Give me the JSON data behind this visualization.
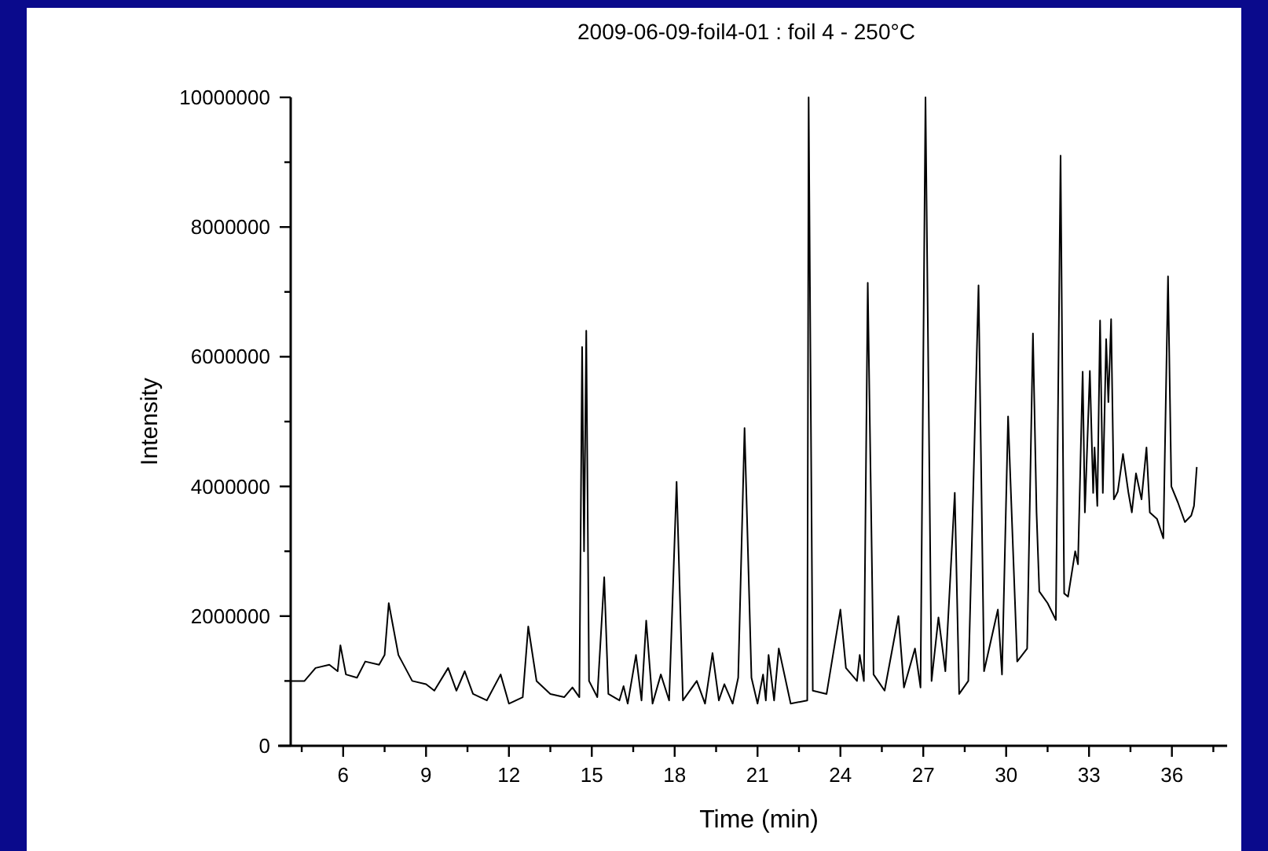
{
  "chart_data": {
    "type": "line",
    "title": "2009-06-09-foil4-01 : foil 4 - 250°C",
    "xlabel": "Time (min)",
    "ylabel": "Intensity",
    "xlim": [
      4.1,
      38
    ],
    "ylim": [
      0,
      10000000
    ],
    "xticks": [
      {
        "value": 4.5,
        "label": null
      },
      6,
      {
        "value": 7.5,
        "label": null
      },
      9,
      {
        "value": 10.5,
        "label": null
      },
      12,
      {
        "value": 13.5,
        "label": null
      },
      15,
      {
        "value": 16.5,
        "label": null
      },
      18,
      {
        "value": 19.5,
        "label": null
      },
      21,
      {
        "value": 22.5,
        "label": null
      },
      24,
      {
        "value": 25.5,
        "label": null
      },
      27,
      {
        "value": 28.5,
        "label": null
      },
      30,
      {
        "value": 31.5,
        "label": null
      },
      33,
      {
        "value": 34.5,
        "label": null
      },
      36,
      {
        "value": 37.5,
        "label": null
      }
    ],
    "yticks": [
      0,
      {
        "value": 1000000,
        "label": null
      },
      2000000,
      {
        "value": 3000000,
        "label": null
      },
      4000000,
      {
        "value": 5000000,
        "label": null
      },
      6000000,
      {
        "value": 7000000,
        "label": null
      },
      8000000,
      {
        "value": 9000000,
        "label": null
      },
      10000000
    ],
    "grid": false,
    "marker": "none",
    "line_style": "solid",
    "series": [
      {
        "color": "#000000",
        "x": [
          4.1,
          4.6,
          5.0,
          5.5,
          5.8,
          5.9,
          6.1,
          6.5,
          6.8,
          7.3,
          7.5,
          7.65,
          8.0,
          8.5,
          9.0,
          9.3,
          9.8,
          10.1,
          10.4,
          10.7,
          11.2,
          11.7,
          12.0,
          12.5,
          12.7,
          13.0,
          13.5,
          14.0,
          14.3,
          14.55,
          14.65,
          14.72,
          14.8,
          14.9,
          15.2,
          15.45,
          15.6,
          16.0,
          16.15,
          16.3,
          16.6,
          16.8,
          16.97,
          17.2,
          17.5,
          17.8,
          18.07,
          18.3,
          18.8,
          19.1,
          19.37,
          19.6,
          19.8,
          20.1,
          20.3,
          20.53,
          20.78,
          21.0,
          21.2,
          21.3,
          21.4,
          21.6,
          21.77,
          22.2,
          22.8,
          22.85,
          23.0,
          23.5,
          24.0,
          24.2,
          24.6,
          24.7,
          24.85,
          24.99,
          25.2,
          25.6,
          26.1,
          26.3,
          26.7,
          26.9,
          27.08,
          27.3,
          27.55,
          27.8,
          28.14,
          28.3,
          28.63,
          29.0,
          29.2,
          29.7,
          29.85,
          30.07,
          30.4,
          30.76,
          30.97,
          31.1,
          31.2,
          31.5,
          31.8,
          31.97,
          32.1,
          32.24,
          32.5,
          32.6,
          32.77,
          32.85,
          33.03,
          33.15,
          33.2,
          33.3,
          33.4,
          33.5,
          33.62,
          33.7,
          33.8,
          33.9,
          34.04,
          34.23,
          34.42,
          34.55,
          34.7,
          34.9,
          35.08,
          35.2,
          35.46,
          35.69,
          35.86,
          35.98,
          36.22,
          36.47,
          36.7,
          36.8,
          36.9
        ],
        "values": [
          1000000,
          1000000,
          1200000,
          1250000,
          1150000,
          1550000,
          1100000,
          1050000,
          1300000,
          1250000,
          1400000,
          2200000,
          1400000,
          1000000,
          950000,
          850000,
          1200000,
          850000,
          1150000,
          800000,
          700000,
          1100000,
          650000,
          750000,
          1840000,
          1000000,
          800000,
          750000,
          900000,
          750000,
          6150000,
          3000000,
          6400000,
          1000000,
          750000,
          2600000,
          800000,
          700000,
          920000,
          650000,
          1400000,
          700000,
          1930000,
          650000,
          1100000,
          700000,
          4070000,
          700000,
          1000000,
          650000,
          1430000,
          700000,
          950000,
          650000,
          1050000,
          4900000,
          1050000,
          650000,
          1100000,
          700000,
          1400000,
          700000,
          1500000,
          650000,
          700000,
          10000000,
          850000,
          800000,
          2100000,
          1200000,
          1000000,
          1400000,
          1000000,
          7140000,
          1100000,
          850000,
          2000000,
          900000,
          1500000,
          900000,
          10000000,
          1000000,
          1980000,
          1150000,
          3900000,
          800000,
          1000000,
          7100000,
          1150000,
          2100000,
          1100000,
          5080000,
          1300000,
          1500000,
          6360000,
          3600000,
          2380000,
          2200000,
          1940000,
          9100000,
          2350000,
          2300000,
          3000000,
          2800000,
          5770000,
          3600000,
          5780000,
          3900000,
          4600000,
          3700000,
          6560000,
          3900000,
          6270000,
          5300000,
          6580000,
          3800000,
          3920000,
          4500000,
          3920000,
          3600000,
          4200000,
          3800000,
          4600000,
          3600000,
          3500000,
          3200000,
          7240000,
          4000000,
          3750000,
          3450000,
          3550000,
          3700000,
          4300000
        ]
      }
    ]
  }
}
